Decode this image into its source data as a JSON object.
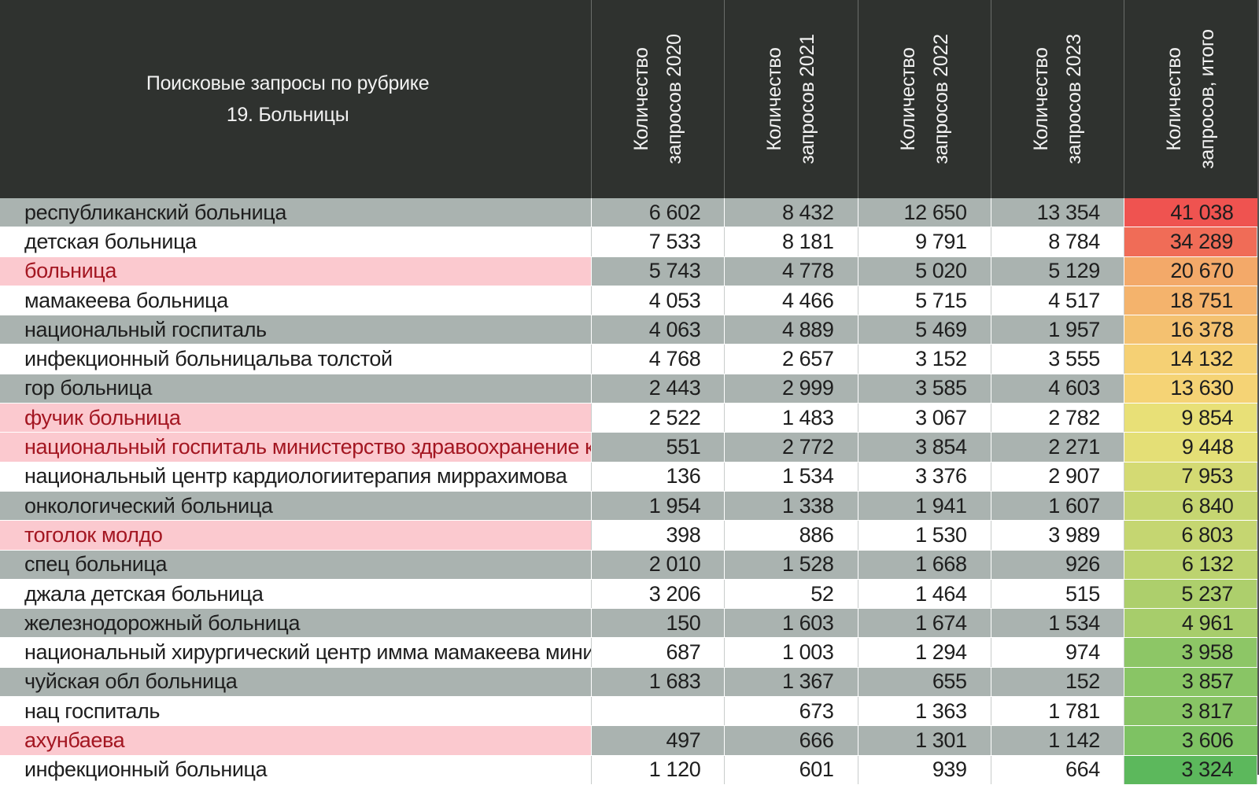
{
  "header": {
    "title_line1": "Поисковые запросы по рубрике",
    "title_line2": "19. Больницы",
    "columns": [
      {
        "line1": "Количество",
        "line2": "запросов 2020"
      },
      {
        "line1": "Количество",
        "line2": "запросов 2021"
      },
      {
        "line1": "Количество",
        "line2": "запросов 2022"
      },
      {
        "line1": "Количество",
        "line2": "запросов 2023"
      },
      {
        "line1": "Количество",
        "line2": "запросов, итого"
      }
    ]
  },
  "colors": {
    "header_bg": "#2f322f",
    "shaded_row": "#aab3b0",
    "highlight_bg": "#fbc9cf",
    "highlight_text": "#a31621",
    "heat_high": "#ef5350",
    "heat_mid": "#f6e47a",
    "heat_low": "#5cb85c"
  },
  "rows": [
    {
      "name": "республиканский больница",
      "y2020": "6 602",
      "y2021": "8 432",
      "y2022": "12 650",
      "y2023": "13 354",
      "total": "41 038",
      "highlight": false
    },
    {
      "name": "детская больница",
      "y2020": "7 533",
      "y2021": "8 181",
      "y2022": "9 791",
      "y2023": "8 784",
      "total": "34 289",
      "highlight": false
    },
    {
      "name": "больница",
      "y2020": "5 743",
      "y2021": "4 778",
      "y2022": "5 020",
      "y2023": "5 129",
      "total": "20 670",
      "highlight": true
    },
    {
      "name": "мамакеева больница",
      "y2020": "4 053",
      "y2021": "4 466",
      "y2022": "5 715",
      "y2023": "4 517",
      "total": "18 751",
      "highlight": false
    },
    {
      "name": "национальный госпиталь",
      "y2020": "4 063",
      "y2021": "4 889",
      "y2022": "5 469",
      "y2023": "1 957",
      "total": "16 378",
      "highlight": false
    },
    {
      "name": "инфекционный больницальва толстой",
      "y2020": "4 768",
      "y2021": "2 657",
      "y2022": "3 152",
      "y2023": "3 555",
      "total": "14 132",
      "highlight": false
    },
    {
      "name": "гор больница",
      "y2020": "2 443",
      "y2021": "2 999",
      "y2022": "3 585",
      "y2023": "4 603",
      "total": "13 630",
      "highlight": false
    },
    {
      "name": "фучик больница",
      "y2020": "2 522",
      "y2021": "1 483",
      "y2022": "3 067",
      "y2023": "2 782",
      "total": "9 854",
      "highlight": true
    },
    {
      "name": "национальный госпиталь министерство здравоохранение кр",
      "y2020": "551",
      "y2021": "2 772",
      "y2022": "3 854",
      "y2023": "2 271",
      "total": "9 448",
      "highlight": true
    },
    {
      "name": "национальный центр кардиологиитерапия миррахимова",
      "y2020": "136",
      "y2021": "1 534",
      "y2022": "3 376",
      "y2023": "2 907",
      "total": "7 953",
      "highlight": false
    },
    {
      "name": "онкологический больница",
      "y2020": "1 954",
      "y2021": "1 338",
      "y2022": "1 941",
      "y2023": "1 607",
      "total": "6 840",
      "highlight": false
    },
    {
      "name": "тоголок молдо",
      "y2020": "398",
      "y2021": "886",
      "y2022": "1 530",
      "y2023": "3 989",
      "total": "6 803",
      "highlight": true
    },
    {
      "name": "спец больница",
      "y2020": "2 010",
      "y2021": "1 528",
      "y2022": "1 668",
      "y2023": "926",
      "total": "6 132",
      "highlight": false
    },
    {
      "name": "джала детская больница",
      "y2020": "3 206",
      "y2021": "52",
      "y2022": "1 464",
      "y2023": "515",
      "total": "5 237",
      "highlight": false
    },
    {
      "name": "железнодорожный больница",
      "y2020": "150",
      "y2021": "1 603",
      "y2022": "1 674",
      "y2023": "1 534",
      "total": "4 961",
      "highlight": false
    },
    {
      "name": "национальный хирургический центр имма мамакеева минист",
      "y2020": "687",
      "y2021": "1 003",
      "y2022": "1 294",
      "y2023": "974",
      "total": "3 958",
      "highlight": false
    },
    {
      "name": "чуйская обл больница",
      "y2020": "1 683",
      "y2021": "1 367",
      "y2022": "655",
      "y2023": "152",
      "total": "3 857",
      "highlight": false
    },
    {
      "name": "нац госпиталь",
      "y2020": "",
      "y2021": "673",
      "y2022": "1 363",
      "y2023": "1 781",
      "total": "3 817",
      "highlight": false
    },
    {
      "name": "ахунбаева",
      "y2020": "497",
      "y2021": "666",
      "y2022": "1 301",
      "y2023": "1 142",
      "total": "3 606",
      "highlight": true
    },
    {
      "name": "инфекционный больница",
      "y2020": "1 120",
      "y2021": "601",
      "y2022": "939",
      "y2023": "664",
      "total": "3 324",
      "highlight": false
    }
  ]
}
